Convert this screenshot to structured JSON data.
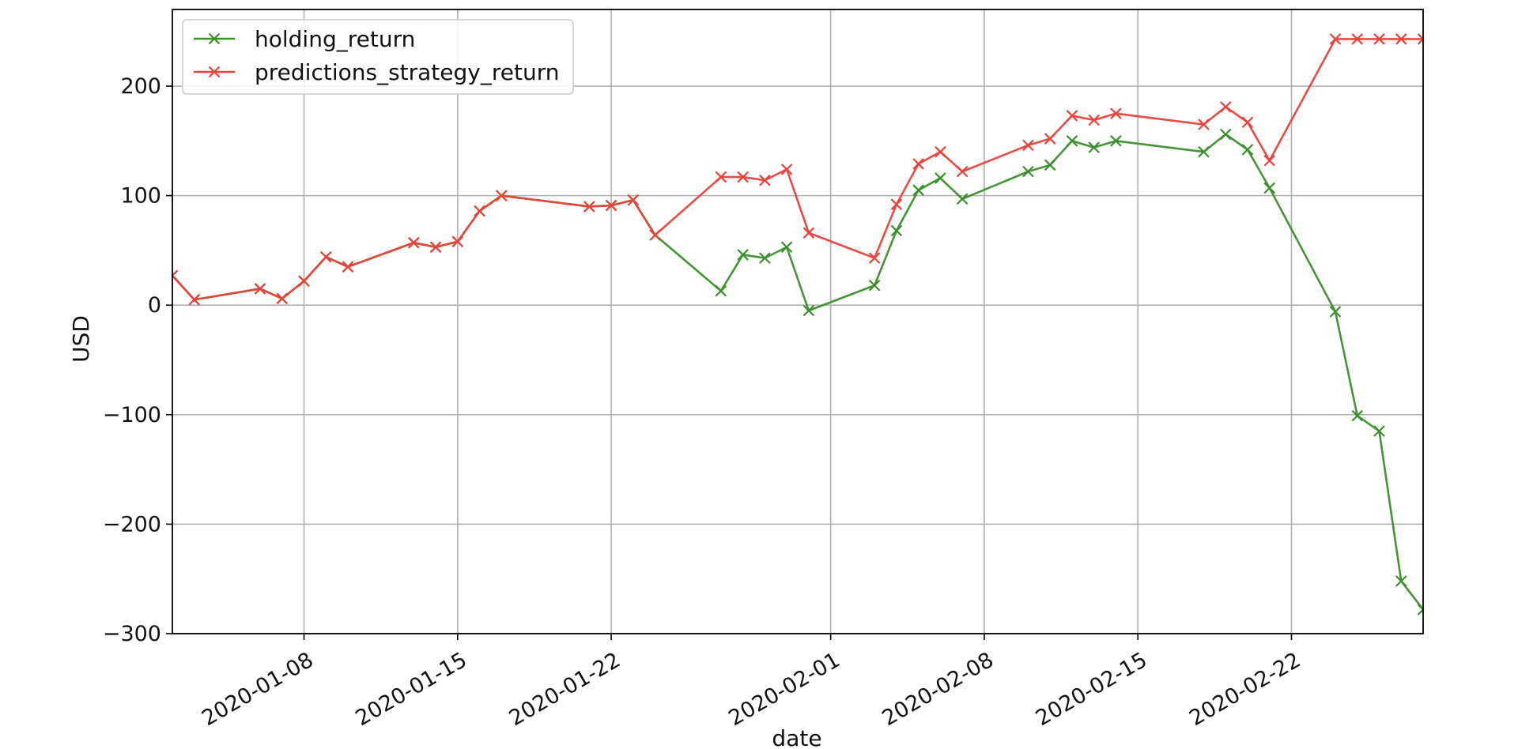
{
  "chart_data": {
    "type": "line",
    "title": "",
    "xlabel": "date",
    "ylabel": "USD",
    "grid": true,
    "legend_position": "top-left",
    "x_range": [
      "2020-01-02",
      "2020-02-28"
    ],
    "ylim": [
      -300,
      270
    ],
    "y_ticks": [
      -300,
      -200,
      -100,
      0,
      100,
      200
    ],
    "y_tick_labels": [
      "−300",
      "−200",
      "−100",
      "0",
      "100",
      "200"
    ],
    "x_ticks": [
      "2020-01-08",
      "2020-01-15",
      "2020-01-22",
      "2020-02-01",
      "2020-02-08",
      "2020-02-15",
      "2020-02-22"
    ],
    "x_tick_labels": [
      "2020-01-08",
      "2020-01-15",
      "2020-01-22",
      "2020-02-01",
      "2020-02-08",
      "2020-02-15",
      "2020-02-22"
    ],
    "x": [
      "2020-01-02",
      "2020-01-03",
      "2020-01-06",
      "2020-01-07",
      "2020-01-08",
      "2020-01-09",
      "2020-01-10",
      "2020-01-13",
      "2020-01-14",
      "2020-01-15",
      "2020-01-16",
      "2020-01-17",
      "2020-01-21",
      "2020-01-22",
      "2020-01-23",
      "2020-01-24",
      "2020-01-27",
      "2020-01-28",
      "2020-01-29",
      "2020-01-30",
      "2020-01-31",
      "2020-02-03",
      "2020-02-04",
      "2020-02-05",
      "2020-02-06",
      "2020-02-07",
      "2020-02-10",
      "2020-02-11",
      "2020-02-12",
      "2020-02-13",
      "2020-02-14",
      "2020-02-18",
      "2020-02-19",
      "2020-02-20",
      "2020-02-21",
      "2020-02-24",
      "2020-02-25",
      "2020-02-26",
      "2020-02-27",
      "2020-02-28"
    ],
    "series": [
      {
        "name": "holding_return",
        "color": "#3a8f2b",
        "marker": "x",
        "values": [
          27,
          5,
          15,
          6,
          22,
          44,
          35,
          57,
          53,
          58,
          86,
          100,
          90,
          91,
          96,
          64,
          13,
          46,
          43,
          53,
          -5,
          18,
          68,
          105,
          116,
          97,
          122,
          128,
          150,
          144,
          150,
          140,
          156,
          142,
          107,
          -6,
          -101,
          -115,
          -252,
          -278
        ]
      },
      {
        "name": "predictions_strategy_return",
        "color": "#e8423a",
        "marker": "x",
        "values": [
          27,
          5,
          15,
          6,
          22,
          44,
          35,
          57,
          53,
          58,
          86,
          100,
          90,
          91,
          96,
          64,
          117,
          117,
          114,
          124,
          66,
          43,
          92,
          129,
          140,
          122,
          146,
          152,
          173,
          169,
          175,
          165,
          181,
          167,
          132,
          243,
          243,
          243,
          243,
          243
        ]
      }
    ]
  }
}
